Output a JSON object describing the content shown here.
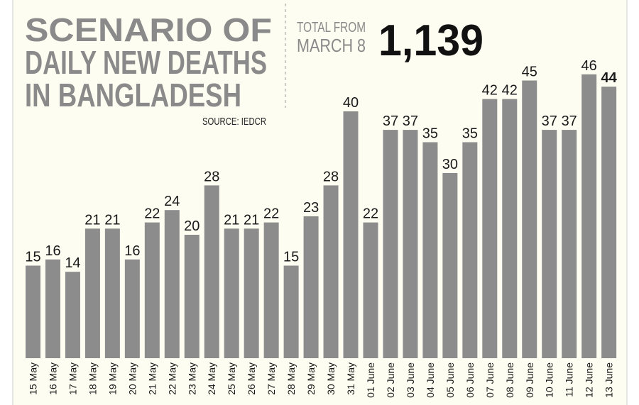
{
  "chart_data": {
    "type": "bar",
    "title": [
      "SCENARIO OF",
      "DAILY NEW DEATHS",
      "IN BANGLADESH"
    ],
    "source": "SOURCE: IEDCR",
    "annotation": {
      "text": [
        "TOTAL FROM",
        "MARCH 8"
      ],
      "value": "1,139"
    },
    "categories": [
      "15 May",
      "16 May",
      "17 May",
      "18 May",
      "19 May",
      "20 May",
      "21 May",
      "22 May",
      "23 May",
      "24 May",
      "25 May",
      "26 May",
      "27 May",
      "28 May",
      "29 May",
      "30 May",
      "31 May",
      "01 June",
      "02 June",
      "03 June",
      "04 June",
      "05 June",
      "06 June",
      "07 June",
      "08 June",
      "09 June",
      "10 June",
      "11 June",
      "12 June",
      "13 June"
    ],
    "values": [
      15,
      16,
      14,
      21,
      21,
      16,
      22,
      24,
      20,
      28,
      21,
      21,
      22,
      15,
      23,
      28,
      40,
      22,
      37,
      37,
      35,
      30,
      35,
      42,
      42,
      45,
      37,
      37,
      46,
      44
    ],
    "color": "#8c8c8c"
  }
}
